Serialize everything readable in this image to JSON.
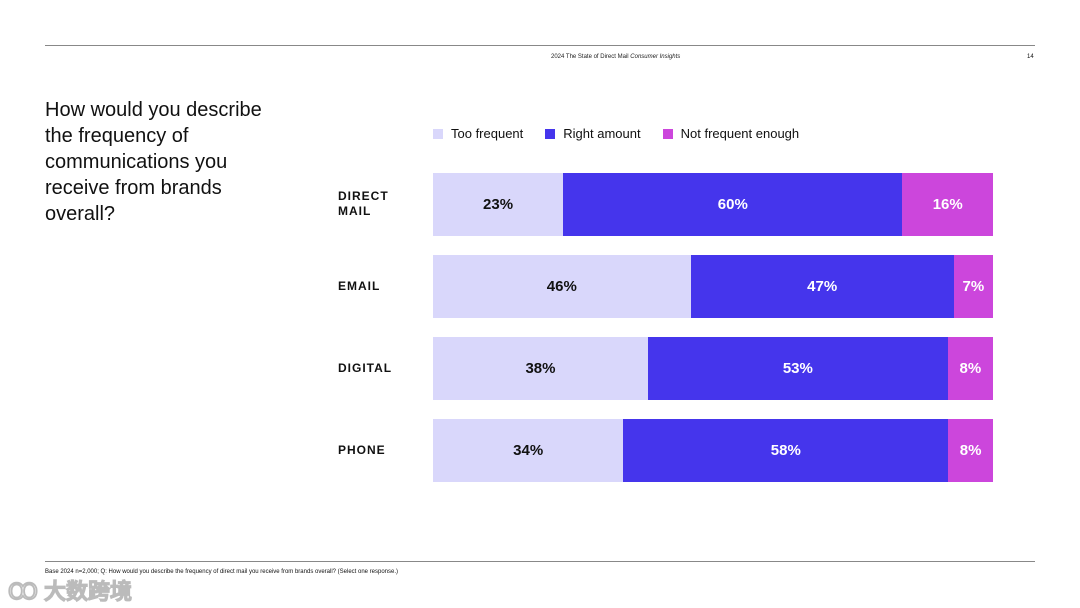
{
  "header": {
    "title_plain": "2024 The State of Direct Mail",
    "title_italic": "Consumer Insights",
    "page": "14"
  },
  "question": "How would you describe the frequency of communications you receive from brands overall?",
  "footnote": "Base 2024 n=2,000; Q: How would you describe the frequency of direct mail you receive from brands overall? (Select one response.)",
  "watermark": "大数跨境",
  "chart_data": {
    "type": "bar",
    "stacked": true,
    "orientation": "horizontal",
    "categories": [
      "DIRECT MAIL",
      "EMAIL",
      "DIGITAL",
      "PHONE"
    ],
    "series": [
      {
        "name": "Too frequent",
        "color": "#d9d7fb",
        "text_color": "#111111",
        "values": [
          23,
          46,
          38,
          34
        ]
      },
      {
        "name": "Right amount",
        "color": "#4535ec",
        "text_color": "#ffffff",
        "values": [
          60,
          47,
          53,
          58
        ]
      },
      {
        "name": "Not frequent enough",
        "color": "#cc46dc",
        "text_color": "#ffffff",
        "values": [
          16,
          7,
          8,
          8
        ]
      }
    ],
    "unit": "%",
    "legend": "top"
  }
}
